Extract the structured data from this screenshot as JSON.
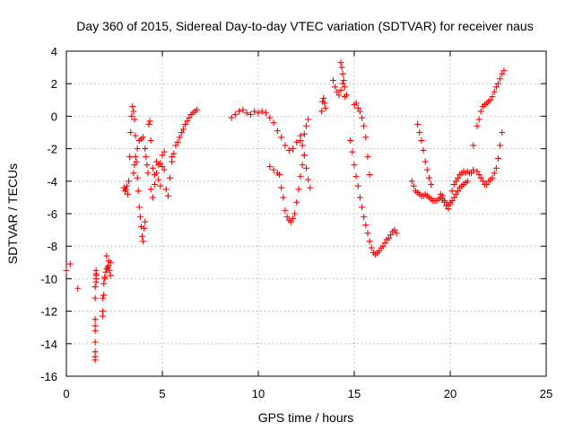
{
  "chart_data": {
    "type": "scatter",
    "title": "Day 360 of 2015, Sidereal Day-to-day VTEC variation (SDTVAR) for receiver naus",
    "xlabel": "GPS time / hours",
    "ylabel": "SDTVAR / TECUs",
    "xlim": [
      0,
      25
    ],
    "ylim": [
      -16,
      4
    ],
    "xticks": [
      0,
      5,
      10,
      15,
      20,
      25
    ],
    "xtick_labels": [
      "0",
      "5",
      "10",
      "15",
      "20",
      "25"
    ],
    "yticks": [
      -16,
      -14,
      -12,
      -10,
      -8,
      -6,
      -4,
      -2,
      0,
      2,
      4
    ],
    "ytick_labels": [
      "-16",
      "-14",
      "-12",
      "-10",
      "-8",
      "-6",
      "-4",
      "-2",
      "0",
      "2",
      "4"
    ],
    "grid": true,
    "marker": "plus",
    "series": [
      {
        "name": "SDTVAR",
        "color": "#ff0000",
        "x": [
          0.0,
          0.2,
          0.6,
          1.5,
          1.5,
          1.5,
          1.5,
          1.5,
          1.5,
          1.5,
          1.5,
          1.5,
          1.55,
          1.55,
          1.55,
          1.55,
          1.55,
          1.9,
          1.9,
          1.9,
          1.95,
          1.95,
          2.0,
          2.05,
          2.1,
          2.15,
          2.2,
          2.25,
          2.3,
          2.3,
          2.1,
          2.2,
          2.0,
          3.0,
          3.05,
          3.1,
          3.15,
          3.2,
          3.25,
          3.3,
          3.35,
          3.4,
          3.45,
          3.5,
          3.55,
          3.6,
          3.65,
          3.7,
          3.75,
          3.8,
          3.85,
          3.9,
          3.95,
          4.0,
          4.05,
          4.1,
          3.5,
          3.55,
          3.6,
          3.7,
          3.8,
          3.9,
          4.0,
          4.1,
          4.15,
          4.2,
          4.25,
          4.3,
          4.35,
          4.4,
          4.4,
          4.5,
          4.6,
          4.7,
          4.8,
          4.9,
          5.0,
          5.1,
          5.2,
          5.3,
          5.4,
          5.5,
          4.5,
          4.6,
          4.7,
          4.8,
          4.9,
          5.0,
          5.1,
          5.5,
          5.6,
          5.7,
          5.8,
          5.9,
          6.0,
          6.1,
          6.2,
          6.3,
          6.4,
          6.5,
          6.6,
          6.7,
          6.8,
          8.6,
          8.8,
          9.0,
          9.2,
          9.4,
          9.6,
          9.8,
          10.0,
          10.2,
          10.4,
          10.6,
          10.8,
          11.0,
          11.2,
          11.4,
          11.6,
          11.8,
          12.0,
          12.2,
          12.4,
          10.6,
          10.8,
          11.0,
          11.1,
          11.2,
          11.3,
          11.4,
          11.5,
          11.6,
          11.7,
          11.8,
          11.9,
          12.0,
          12.1,
          12.2,
          12.3,
          12.4,
          12.5,
          12.6,
          12.2,
          12.3,
          12.4,
          12.5,
          12.6,
          12.7,
          13.3,
          13.35,
          13.4,
          13.45,
          13.5,
          13.9,
          14.0,
          14.1,
          14.2,
          14.3,
          14.4,
          14.5,
          14.6,
          14.3,
          14.35,
          14.4,
          14.45,
          14.5,
          14.8,
          14.9,
          15.0,
          15.1,
          15.2,
          15.3,
          15.4,
          15.5,
          15.6,
          15.7,
          15.8,
          15.9,
          16.0,
          16.1,
          16.2,
          16.3,
          16.4,
          16.5,
          16.6,
          16.7,
          16.8,
          16.9,
          17.0,
          17.1,
          17.2,
          15.0,
          15.1,
          15.2,
          15.3,
          15.4,
          15.5,
          15.6,
          15.7,
          15.8,
          18.0,
          18.1,
          18.2,
          18.3,
          18.4,
          18.5,
          18.6,
          18.7,
          18.8,
          18.9,
          19.0,
          19.1,
          19.2,
          19.3,
          19.4,
          19.5,
          19.6,
          19.7,
          19.8,
          19.9,
          20.0,
          20.1,
          20.2,
          20.3,
          20.4,
          20.5,
          20.6,
          20.7,
          20.8,
          20.9,
          21.0,
          21.1,
          21.2,
          18.3,
          18.4,
          18.5,
          18.6,
          18.7,
          18.8,
          18.9,
          19.0,
          19.5,
          19.6,
          19.7,
          19.8,
          19.9,
          20.0,
          20.1,
          20.2,
          20.3,
          20.4,
          20.5,
          20.6,
          20.7,
          20.8,
          20.9,
          21.2,
          21.4,
          21.5,
          21.6,
          21.7,
          21.8,
          21.9,
          22.0,
          22.1,
          22.2,
          22.3,
          22.4,
          22.5,
          22.6,
          22.7,
          21.4,
          21.5,
          21.6,
          21.7,
          21.8,
          21.9,
          22.0,
          22.1,
          22.2,
          22.3,
          22.4,
          22.5,
          22.6,
          22.7,
          22.8
        ],
        "y": [
          -9.5,
          -9.1,
          -10.6,
          -15.0,
          -14.8,
          -14.5,
          -13.9,
          -13.2,
          -12.9,
          -12.5,
          -11.2,
          -10.5,
          -10.2,
          -10.0,
          -9.8,
          -9.7,
          -9.5,
          -12.3,
          -12.0,
          -11.2,
          -11.0,
          -10.3,
          -9.9,
          -9.6,
          -9.4,
          -9.3,
          -9.2,
          -9.5,
          -9.8,
          -9.0,
          -8.6,
          -8.9,
          -10.0,
          -4.4,
          -4.6,
          -4.5,
          -4.3,
          -4.8,
          -4.0,
          -2.5,
          -1.0,
          0.0,
          0.6,
          0.3,
          -0.2,
          -1.2,
          -2.8,
          -3.8,
          -4.6,
          -5.6,
          -6.2,
          -6.8,
          -7.4,
          -7.7,
          -6.9,
          -6.5,
          -3.5,
          -3.0,
          -2.5,
          -2.0,
          -1.5,
          -1.4,
          -1.3,
          -2.0,
          -2.5,
          -3.0,
          -3.5,
          -0.5,
          -0.3,
          -1.5,
          -4.5,
          -5.0,
          -4.2,
          -3.5,
          -3.0,
          -2.9,
          -3.1,
          -3.3,
          -4.5,
          -4.9,
          -3.8,
          -2.5,
          -3.2,
          -3.6,
          -2.8,
          -3.9,
          -4.3,
          -2.4,
          -2.2,
          -2.8,
          -2.3,
          -1.8,
          -1.6,
          -1.3,
          -1.0,
          -0.8,
          -0.5,
          -0.3,
          -0.1,
          0.1,
          0.2,
          0.3,
          0.4,
          -0.1,
          0.1,
          0.3,
          0.4,
          0.2,
          0.1,
          0.3,
          0.2,
          0.3,
          0.2,
          -0.1,
          -0.4,
          -0.9,
          -1.3,
          -1.8,
          -2.1,
          -2.0,
          -1.6,
          -1.2,
          -1.1,
          -3.1,
          -3.3,
          -3.5,
          -3.6,
          -4.4,
          -5.0,
          -5.8,
          -6.2,
          -6.4,
          -6.5,
          -6.3,
          -6.0,
          -5.3,
          -4.5,
          -3.7,
          -3.0,
          -2.4,
          -0.6,
          -0.2,
          -1.5,
          -1.8,
          -2.4,
          -3.2,
          -3.9,
          -4.4,
          0.3,
          0.9,
          1.1,
          0.8,
          0.5,
          2.2,
          1.8,
          1.5,
          1.3,
          1.6,
          2.0,
          1.2,
          1.3,
          3.3,
          3.0,
          2.6,
          2.2,
          1.8,
          -1.5,
          -2.2,
          -3.0,
          -3.7,
          -4.3,
          -5.0,
          -5.6,
          -6.2,
          -6.7,
          -7.2,
          -7.7,
          -8.1,
          -8.4,
          -8.5,
          -8.4,
          -8.3,
          -8.1,
          -8.0,
          -7.8,
          -7.6,
          -7.5,
          -7.3,
          -7.1,
          -7.0,
          -7.2,
          0.7,
          0.8,
          0.5,
          0.3,
          -0.1,
          -0.6,
          -1.3,
          -2.5,
          -3.6,
          -4.0,
          -4.3,
          -4.6,
          -4.7,
          -4.8,
          -4.9,
          -4.9,
          -4.8,
          -4.9,
          -5.0,
          -5.1,
          -5.2,
          -5.2,
          -5.2,
          -5.1,
          -5.0,
          -4.9,
          -5.2,
          -5.5,
          -5.7,
          -5.3,
          -4.6,
          -4.2,
          -4.0,
          -3.8,
          -3.6,
          -3.5,
          -3.4,
          -3.5,
          -3.4,
          -3.5,
          -3.5,
          -3.3,
          -0.5,
          -1.0,
          -1.5,
          -2.1,
          -2.8,
          -3.3,
          -3.8,
          -4.2,
          -4.8,
          -5.1,
          -5.3,
          -5.5,
          -5.5,
          -5.4,
          -5.2,
          -5.0,
          -4.8,
          -4.6,
          -4.4,
          -4.3,
          -4.2,
          -4.1,
          -4.0,
          -1.8,
          -3.4,
          -3.6,
          -3.8,
          -4.0,
          -4.2,
          -4.2,
          -4.0,
          -3.9,
          -3.8,
          -3.5,
          -3.2,
          -2.6,
          -1.8,
          -1.0,
          -0.6,
          -0.2,
          0.3,
          0.6,
          0.7,
          0.8,
          0.9,
          1.0,
          1.2,
          1.5,
          1.8,
          2.0,
          2.3,
          2.6,
          2.8
        ]
      }
    ]
  }
}
